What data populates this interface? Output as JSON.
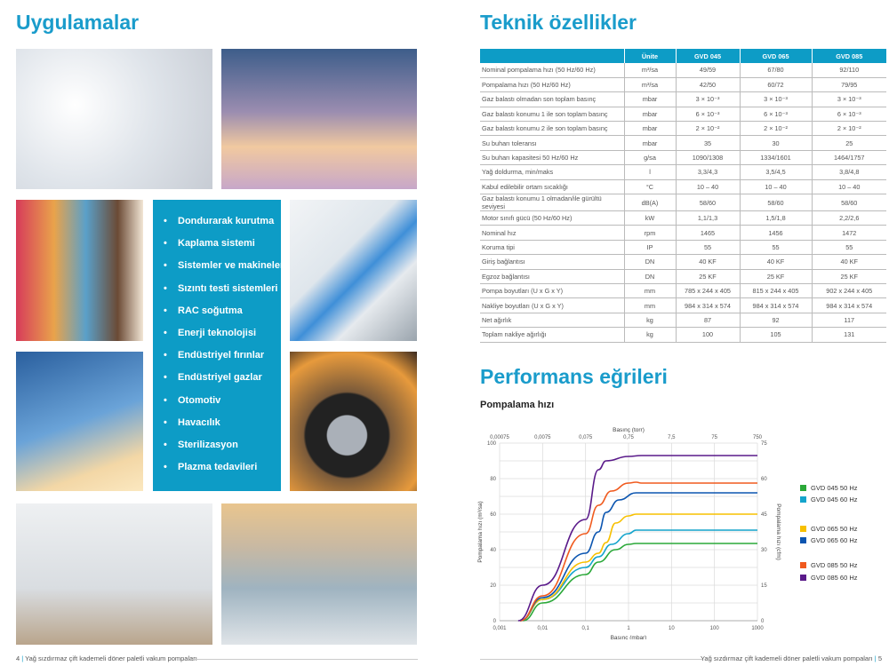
{
  "left_page": {
    "title": "Uygulamalar",
    "images": [
      "vials",
      "airplane",
      "supermarket",
      "lab-scientist",
      "wind-turbine",
      "car-tire",
      "glovebox",
      "factory"
    ],
    "applications": [
      "Dondurarak kurutma",
      "Kaplama sistemi",
      "Sistemler ve makineler",
      "Sızıntı testi sistemleri",
      "RAC soğutma",
      "Enerji teknolojisi",
      "Endüstriyel fırınlar",
      "Endüstriyel gazlar",
      "Otomotiv",
      "Havacılık",
      "Sterilizasyon",
      "Plazma tedavileri"
    ],
    "footer": {
      "page": "4",
      "text": "Yağ sızdırmaz çift kademeli döner paletli vakum pompaları"
    }
  },
  "right_page": {
    "title": "Teknik özellikler",
    "table": {
      "headers": [
        "",
        "Ünite",
        "GVD 045",
        "GVD 065",
        "GVD 085"
      ],
      "rows": [
        [
          "Nominal pompalama hızı (50 Hz/60 Hz)",
          "m³/sa",
          "49/59",
          "67/80",
          "92/110"
        ],
        [
          "Pompalama hızı (50 Hz/60 Hz)",
          "m³/sa",
          "42/50",
          "60/72",
          "79/95"
        ],
        [
          "Gaz balastı olmadan son toplam basınç",
          "mbar",
          "3 × 10⁻³",
          "3 × 10⁻³",
          "3 × 10⁻³"
        ],
        [
          "Gaz balastı konumu 1 ile son toplam basınç",
          "mbar",
          "6 × 10⁻³",
          "6 × 10⁻³",
          "6 × 10⁻³"
        ],
        [
          "Gaz balastı konumu 2 ile son toplam basınç",
          "mbar",
          "2 × 10⁻²",
          "2 × 10⁻²",
          "2 × 10⁻²"
        ],
        [
          "Su buharı toleransı",
          "mbar",
          "35",
          "30",
          "25"
        ],
        [
          "Su buharı kapasitesi 50 Hz/60 Hz",
          "g/sa",
          "1090/1308",
          "1334/1601",
          "1464/1757"
        ],
        [
          "Yağ doldurma, min/maks",
          "l",
          "3,3/4,3",
          "3,5/4,5",
          "3,8/4,8"
        ],
        [
          "Kabul edilebilir ortam sıcaklığı",
          "°C",
          "10 – 40",
          "10 – 40",
          "10 – 40"
        ],
        [
          "Gaz balastı konumu 1 olmadan/ile gürültü seviyesi",
          "dB(A)",
          "58/60",
          "58/60",
          "58/60"
        ],
        [
          "Motor sınıfı gücü (50 Hz/60 Hz)",
          "kW",
          "1,1/1,3",
          "1,5/1,8",
          "2,2/2,6"
        ],
        [
          "Nominal hız",
          "rpm",
          "1465",
          "1456",
          "1472"
        ],
        [
          "Koruma tipi",
          "IP",
          "55",
          "55",
          "55"
        ],
        [
          "Giriş bağlantısı",
          "DN",
          "40 KF",
          "40 KF",
          "40 KF"
        ],
        [
          "Egzoz bağlantısı",
          "DN",
          "25 KF",
          "25 KF",
          "25 KF"
        ],
        [
          "Pompa boyutları (U x G x Y)",
          "mm",
          "785 x 244 x 405",
          "815 x 244 x 405",
          "902 x 244 x 405"
        ],
        [
          "Nakliye boyutları (U x G x Y)",
          "mm",
          "984 x 314 x 574",
          "984 x 314 x 574",
          "984 x 314 x 574"
        ],
        [
          "Net ağırlık",
          "kg",
          "87",
          "92",
          "117"
        ],
        [
          "Toplam nakliye ağırlığı",
          "kg",
          "100",
          "105",
          "131"
        ]
      ]
    },
    "perf_title": "Performans eğrileri",
    "chart_title": "Pompalama hızı",
    "footer": {
      "page": "5",
      "text": "Yağ sızdırmaz çift kademeli döner paletli vakum pompaları"
    }
  },
  "chart_data": {
    "type": "line",
    "title": "Pompalama hızı",
    "xlabel": "Basınç (mbar)",
    "x2label": "Basınç (torr)",
    "ylabel": "Pompalama hızı (m³/sa)",
    "y2label": "Pompalama hızı (cfm)",
    "xscale": "log",
    "xlim": [
      0.001,
      1000
    ],
    "ylim": [
      0,
      100
    ],
    "xticks": [
      "0,001",
      "0,01",
      "0,1",
      "1",
      "10",
      "100",
      "1000"
    ],
    "x2ticks": [
      "0,00075",
      "0,0075",
      "0,075",
      "0,75",
      "7,5",
      "75",
      "750"
    ],
    "yticks": [
      "0",
      "20",
      "40",
      "60",
      "80",
      "100"
    ],
    "y2ticks": [
      "0",
      "15",
      "30",
      "45",
      "60",
      "75"
    ],
    "grid": true,
    "legend": "right",
    "series": [
      {
        "name": "GVD 045 50 Hz",
        "color": "#2aa838",
        "points": [
          [
            0.0035,
            0
          ],
          [
            0.01,
            10
          ],
          [
            0.1,
            26
          ],
          [
            0.2,
            33
          ],
          [
            0.5,
            40
          ],
          [
            1,
            43
          ],
          [
            1.5,
            43.5
          ],
          [
            1000,
            43.5
          ]
        ]
      },
      {
        "name": "GVD 045 60 Hz",
        "color": "#14a4cc",
        "points": [
          [
            0.003,
            0
          ],
          [
            0.01,
            12
          ],
          [
            0.1,
            30
          ],
          [
            0.2,
            36
          ],
          [
            0.4,
            43
          ],
          [
            1,
            49
          ],
          [
            1.5,
            51
          ],
          [
            1000,
            51
          ]
        ]
      },
      {
        "name": "GVD 065 50 Hz",
        "color": "#f7c000",
        "points": [
          [
            0.003,
            0
          ],
          [
            0.01,
            12
          ],
          [
            0.1,
            33
          ],
          [
            0.2,
            38
          ],
          [
            0.3,
            44
          ],
          [
            0.5,
            55
          ],
          [
            1,
            59
          ],
          [
            1.5,
            60
          ],
          [
            1000,
            60
          ]
        ]
      },
      {
        "name": "GVD 065 60 Hz",
        "color": "#0b55b0",
        "points": [
          [
            0.003,
            0
          ],
          [
            0.01,
            13
          ],
          [
            0.1,
            38
          ],
          [
            0.2,
            50
          ],
          [
            0.3,
            61
          ],
          [
            0.6,
            68
          ],
          [
            1.5,
            72
          ],
          [
            1000,
            72
          ]
        ]
      },
      {
        "name": "GVD 085 50 Hz",
        "color": "#f05a1e",
        "points": [
          [
            0.003,
            0
          ],
          [
            0.01,
            14
          ],
          [
            0.1,
            49
          ],
          [
            0.2,
            65
          ],
          [
            0.4,
            73
          ],
          [
            1,
            77.5
          ],
          [
            1.5,
            78
          ],
          [
            2,
            77.5
          ],
          [
            1000,
            77.5
          ]
        ]
      },
      {
        "name": "GVD 085 60 Hz",
        "color": "#5a1a8a",
        "points": [
          [
            0.0027,
            0
          ],
          [
            0.01,
            20
          ],
          [
            0.1,
            57
          ],
          [
            0.2,
            85
          ],
          [
            0.3,
            90
          ],
          [
            1,
            92.5
          ],
          [
            2,
            93
          ],
          [
            1000,
            93
          ]
        ]
      }
    ]
  }
}
